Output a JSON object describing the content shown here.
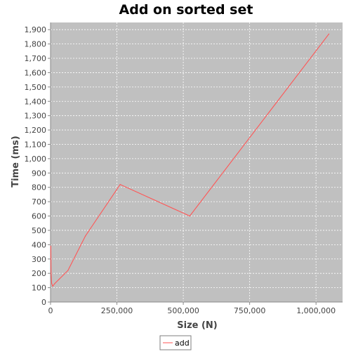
{
  "chart_data": {
    "type": "line",
    "title": "Add on sorted set",
    "xlabel": "Size (N)",
    "ylabel": "Time (ms)",
    "xlim": [
      0,
      1100000
    ],
    "ylim": [
      0,
      1950
    ],
    "x_ticks": [
      0,
      250000,
      500000,
      750000,
      1000000
    ],
    "x_tick_labels": [
      "0",
      "250,000",
      "500,000",
      "750,000",
      "1,000,000"
    ],
    "y_ticks": [
      0,
      100,
      200,
      300,
      400,
      500,
      600,
      700,
      800,
      900,
      1000,
      1100,
      1200,
      1300,
      1400,
      1500,
      1600,
      1700,
      1800,
      1900
    ],
    "y_tick_labels": [
      "0",
      "100",
      "200",
      "300",
      "400",
      "500",
      "600",
      "700",
      "800",
      "900",
      "1,000",
      "1,100",
      "1,200",
      "1,300",
      "1,400",
      "1,500",
      "1,600",
      "1,700",
      "1,800",
      "1,900"
    ],
    "grid": true,
    "legend_position": "bottom-center",
    "plot_background": "#c0c0c0",
    "grid_color": "#ffffff",
    "series": [
      {
        "name": "add",
        "color": "#ff5555",
        "x": [
          1024,
          2048,
          4096,
          8192,
          16384,
          32768,
          65536,
          131072,
          262144,
          524288,
          1048576
        ],
        "y": [
          390,
          200,
          130,
          110,
          130,
          160,
          220,
          460,
          820,
          600,
          1870
        ]
      }
    ]
  }
}
